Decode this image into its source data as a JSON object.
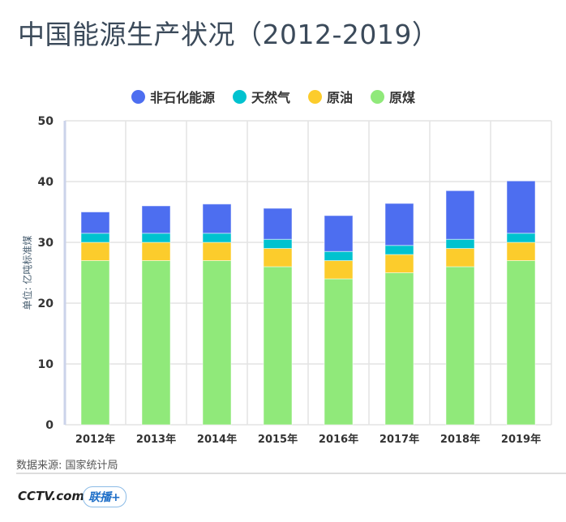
{
  "title": "中国能源生产状况（2012-2019）",
  "source": "数据来源: 国家统计局",
  "logos": [
    "CCTV.com 央视网",
    "联播+"
  ],
  "chart_data": {
    "type": "bar",
    "stacked": true,
    "ylabel": "单位: 亿吨标准煤",
    "ylim": [
      0,
      50
    ],
    "yticks": [
      0,
      10,
      20,
      30,
      40,
      50
    ],
    "grid": true,
    "legend_position": "top",
    "categories": [
      "2012年",
      "2013年",
      "2014年",
      "2015年",
      "2016年",
      "2017年",
      "2018年",
      "2019年"
    ],
    "series": [
      {
        "name": "原煤",
        "color": "#90e97a",
        "values": [
          27,
          27,
          27,
          26,
          24,
          25,
          26,
          27
        ]
      },
      {
        "name": "原油",
        "color": "#fccc2c",
        "values": [
          3,
          3,
          3,
          3,
          3,
          3,
          3,
          3
        ]
      },
      {
        "name": "天然气",
        "color": "#00c2cf",
        "values": [
          1.5,
          1.5,
          1.5,
          1.5,
          1.5,
          1.5,
          1.5,
          1.5
        ]
      },
      {
        "name": "非石化能源",
        "color": "#4d6ef0",
        "values": [
          3.5,
          4.5,
          4.8,
          5.1,
          5.9,
          6.9,
          8,
          8.6
        ]
      }
    ],
    "legend_order": [
      "非石化能源",
      "天然气",
      "原油",
      "原煤"
    ]
  }
}
